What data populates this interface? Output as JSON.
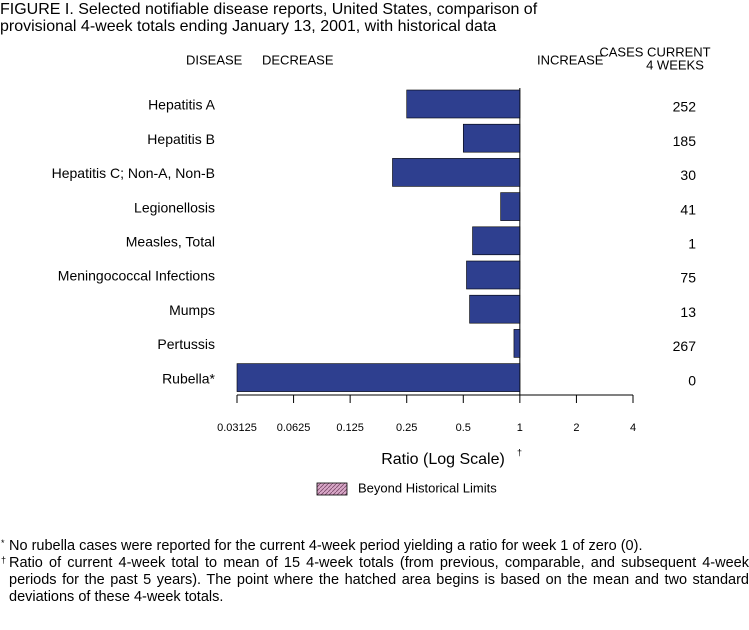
{
  "chart_data": {
    "type": "bar",
    "orientation": "horizontal",
    "title": [
      "FIGURE I. Selected notifiable disease reports, United States, comparison of",
      "provisional 4-week totals ending January 13, 2001, with historical data"
    ],
    "headers": {
      "disease": "DISEASE",
      "decrease": "DECREASE",
      "increase": "INCREASE",
      "cases": [
        "CASES CURRENT",
        "4 WEEKS"
      ]
    },
    "categories": [
      "Hepatitis A",
      "Hepatitis B",
      "Hepatitis C; Non-A, Non-B",
      "Legionellosis",
      "Measles, Total",
      "Meningococcal Infections",
      "Mumps",
      "Pertussis",
      "Rubella*"
    ],
    "values": [
      0.25,
      0.5,
      0.21,
      0.79,
      0.56,
      0.52,
      0.54,
      0.93,
      0.03125
    ],
    "cases": [
      252,
      185,
      30,
      41,
      1,
      75,
      13,
      267,
      0
    ],
    "color": "#2e3f8f",
    "xscale": "log",
    "xlim": [
      0.03125,
      4
    ],
    "xticks": [
      0.03125,
      0.0625,
      0.125,
      0.25,
      0.5,
      1,
      2,
      4
    ],
    "xlabel": "Ratio (Log Scale)",
    "xlabel_mark": "†",
    "legend": {
      "label": "Beyond Historical Limits",
      "color": "#c48ab0"
    },
    "footnotes": [
      {
        "mark": "*",
        "text": "No rubella cases were reported for the current 4-week period yielding a ratio for week 1 of zero (0)."
      },
      {
        "mark": "†",
        "text": "Ratio of current 4-week total to mean of 15 4-week totals (from previous, comparable, and subsequent 4-week periods for the past 5 years). The point where the hatched area begins is based on the mean and two standard deviations of these 4-week totals."
      }
    ]
  }
}
